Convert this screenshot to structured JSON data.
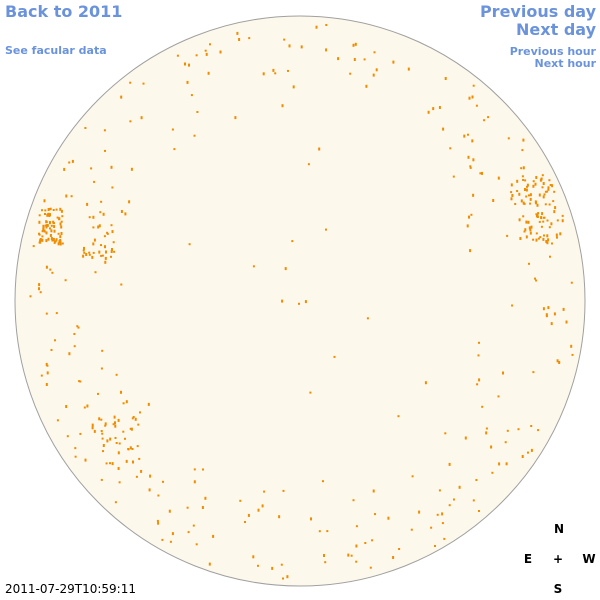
{
  "nav": {
    "back": "Back to 2011",
    "facular": "See facular data",
    "previous_day": "Previous day",
    "next_day": "Next day",
    "previous_hour": "Previous hour",
    "next_hour": "Next hour"
  },
  "timestamp": "2011-07-29T10:59:11",
  "compass": {
    "north": "N",
    "east": "E",
    "center": "+",
    "west": "W",
    "south": "S"
  }
}
